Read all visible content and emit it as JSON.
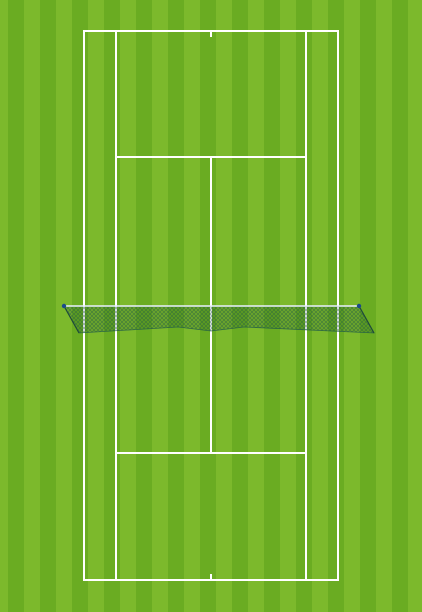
{
  "scene": {
    "surface": "grass",
    "mow_pattern": "vertical-stripes",
    "view": "top-down"
  },
  "colors": {
    "grass_light": "#7cb92c",
    "grass_dark": "#6aac22",
    "lines": "#ffffff",
    "net_mesh": "#1f5a4a",
    "net_tape": "#e8f0ff",
    "net_post": "#1a4a8a"
  }
}
